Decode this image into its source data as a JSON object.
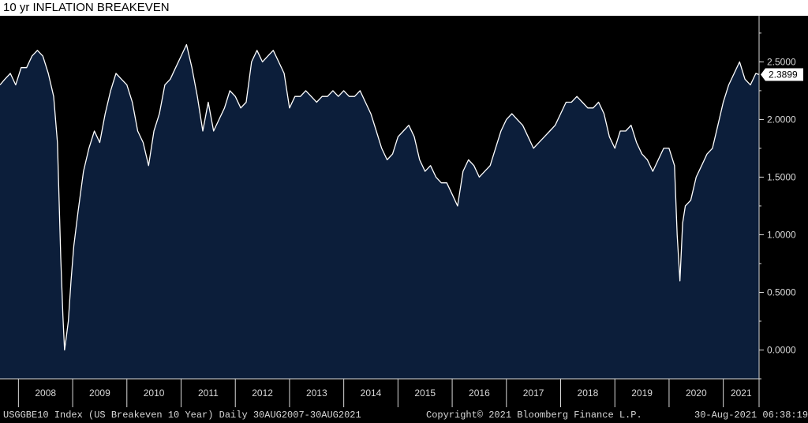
{
  "title": "10 yr INFLATION BREAKEVEN",
  "colors": {
    "background": "#000000",
    "area_fill": "#0c1e3a",
    "line": "#ffffff",
    "text": "#d8d8d8"
  },
  "footer": {
    "left": "USGGBE10 Index (US Breakeven 10 Year)  Daily 30AUG2007-30AUG2021",
    "center": "Copyright© 2021 Bloomberg Finance L.P.",
    "right": "30-Aug-2021 06:38:19"
  },
  "chart_data": {
    "type": "area",
    "title": "10 yr INFLATION BREAKEVEN",
    "series_name": "USGGBE10 Index (US Breakeven 10 Year)",
    "last_value_label": "2.3899",
    "last_value": 2.3899,
    "ylim": [
      -0.25,
      2.9
    ],
    "xlim": [
      2007.66,
      2021.66
    ],
    "y_ticks": [
      0,
      0.5,
      1.0,
      1.5,
      2.0,
      2.5
    ],
    "y_tick_labels": [
      "0.0000",
      "0.5000",
      "1.0000",
      "1.5000",
      "2.0000",
      "2.5000"
    ],
    "x_tick_labels": [
      "2008",
      "2009",
      "2010",
      "2011",
      "2012",
      "2013",
      "2014",
      "2015",
      "2016",
      "2017",
      "2018",
      "2019",
      "2020",
      "2021"
    ],
    "x": [
      2007.66,
      2007.75,
      2007.85,
      2007.95,
      2008.05,
      2008.15,
      2008.25,
      2008.35,
      2008.45,
      2008.55,
      2008.65,
      2008.72,
      2008.78,
      2008.82,
      2008.85,
      2008.88,
      2008.92,
      2008.97,
      2009.02,
      2009.1,
      2009.2,
      2009.3,
      2009.4,
      2009.5,
      2009.6,
      2009.7,
      2009.8,
      2009.9,
      2010.0,
      2010.1,
      2010.2,
      2010.3,
      2010.4,
      2010.5,
      2010.6,
      2010.7,
      2010.8,
      2010.9,
      2011.0,
      2011.1,
      2011.2,
      2011.3,
      2011.4,
      2011.5,
      2011.6,
      2011.7,
      2011.8,
      2011.9,
      2012.0,
      2012.1,
      2012.2,
      2012.3,
      2012.4,
      2012.5,
      2012.6,
      2012.7,
      2012.8,
      2012.9,
      2013.0,
      2013.1,
      2013.2,
      2013.3,
      2013.4,
      2013.5,
      2013.6,
      2013.7,
      2013.8,
      2013.9,
      2014.0,
      2014.1,
      2014.2,
      2014.3,
      2014.4,
      2014.5,
      2014.6,
      2014.7,
      2014.8,
      2014.9,
      2015.0,
      2015.1,
      2015.2,
      2015.3,
      2015.4,
      2015.5,
      2015.6,
      2015.7,
      2015.8,
      2015.9,
      2016.0,
      2016.1,
      2016.2,
      2016.3,
      2016.4,
      2016.5,
      2016.6,
      2016.7,
      2016.8,
      2016.9,
      2017.0,
      2017.1,
      2017.2,
      2017.3,
      2017.4,
      2017.5,
      2017.6,
      2017.7,
      2017.8,
      2017.9,
      2018.0,
      2018.1,
      2018.2,
      2018.3,
      2018.4,
      2018.5,
      2018.6,
      2018.7,
      2018.8,
      2018.9,
      2019.0,
      2019.1,
      2019.2,
      2019.3,
      2019.4,
      2019.5,
      2019.6,
      2019.7,
      2019.8,
      2019.9,
      2020.0,
      2020.1,
      2020.15,
      2020.2,
      2020.25,
      2020.3,
      2020.4,
      2020.5,
      2020.6,
      2020.7,
      2020.8,
      2020.9,
      2021.0,
      2021.1,
      2021.2,
      2021.3,
      2021.4,
      2021.5,
      2021.6,
      2021.66
    ],
    "y": [
      2.3,
      2.35,
      2.4,
      2.3,
      2.45,
      2.45,
      2.55,
      2.6,
      2.55,
      2.4,
      2.2,
      1.8,
      0.8,
      0.3,
      0.0,
      0.1,
      0.25,
      0.6,
      0.9,
      1.2,
      1.55,
      1.75,
      1.9,
      1.8,
      2.05,
      2.25,
      2.4,
      2.35,
      2.3,
      2.15,
      1.9,
      1.8,
      1.6,
      1.9,
      2.05,
      2.3,
      2.35,
      2.45,
      2.55,
      2.65,
      2.45,
      2.2,
      1.9,
      2.15,
      1.9,
      2.0,
      2.1,
      2.25,
      2.2,
      2.1,
      2.15,
      2.5,
      2.6,
      2.5,
      2.55,
      2.6,
      2.5,
      2.4,
      2.1,
      2.2,
      2.2,
      2.25,
      2.2,
      2.15,
      2.2,
      2.2,
      2.25,
      2.2,
      2.25,
      2.2,
      2.2,
      2.25,
      2.15,
      2.05,
      1.9,
      1.75,
      1.65,
      1.7,
      1.85,
      1.9,
      1.95,
      1.85,
      1.65,
      1.55,
      1.6,
      1.5,
      1.45,
      1.45,
      1.35,
      1.25,
      1.55,
      1.65,
      1.6,
      1.5,
      1.55,
      1.6,
      1.75,
      1.9,
      2.0,
      2.05,
      2.0,
      1.95,
      1.85,
      1.75,
      1.8,
      1.85,
      1.9,
      1.95,
      2.05,
      2.15,
      2.15,
      2.2,
      2.15,
      2.1,
      2.1,
      2.15,
      2.05,
      1.85,
      1.75,
      1.9,
      1.9,
      1.95,
      1.8,
      1.7,
      1.65,
      1.55,
      1.65,
      1.75,
      1.75,
      1.6,
      1.0,
      0.6,
      1.1,
      1.25,
      1.3,
      1.5,
      1.6,
      1.7,
      1.75,
      1.95,
      2.15,
      2.3,
      2.4,
      2.5,
      2.35,
      2.3,
      2.4,
      2.39
    ]
  }
}
